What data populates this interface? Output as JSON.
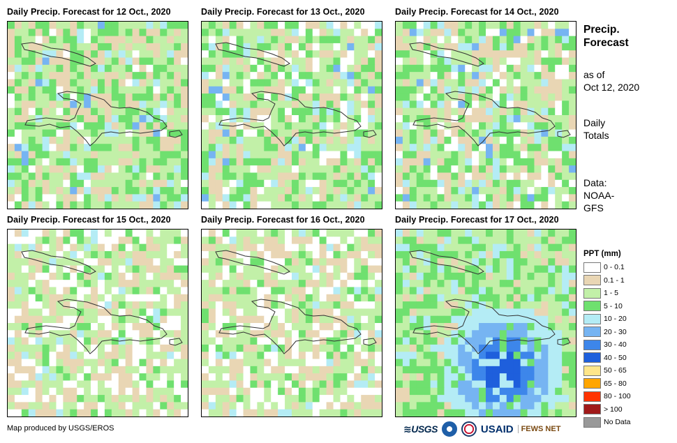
{
  "panels": [
    {
      "title": "Daily Precip. Forecast for 12 Oct., 2020",
      "seed": 12,
      "profile": "wet"
    },
    {
      "title": "Daily Precip. Forecast for 13 Oct., 2020",
      "seed": 13,
      "profile": "mixed"
    },
    {
      "title": "Daily Precip. Forecast for 14 Oct., 2020",
      "seed": 14,
      "profile": "mixed"
    },
    {
      "title": "Daily Precip. Forecast for 15 Oct., 2020",
      "seed": 15,
      "profile": "dry"
    },
    {
      "title": "Daily Precip. Forecast for 16 Oct., 2020",
      "seed": 16,
      "profile": "dry"
    },
    {
      "title": "Daily Precip. Forecast for 17 Oct., 2020",
      "seed": 17,
      "profile": "storm"
    }
  ],
  "side": {
    "title_line1": "Precip.",
    "title_line2": "Forecast",
    "asof_line1": "as of",
    "asof_line2": "Oct 12, 2020",
    "totals_line1": "Daily",
    "totals_line2": "Totals",
    "data_line1": "Data:",
    "data_line2": "NOAA-",
    "data_line3": "GFS"
  },
  "legend": {
    "title": "PPT (mm)",
    "items": [
      {
        "label": "0 - 0.1",
        "color": "#ffffff"
      },
      {
        "label": "0.1 - 1",
        "color": "#e9d6b4"
      },
      {
        "label": "1 - 5",
        "color": "#c2f0a8"
      },
      {
        "label": "5 - 10",
        "color": "#6fe06f"
      },
      {
        "label": "10 - 20",
        "color": "#b4ecf5"
      },
      {
        "label": "20 - 30",
        "color": "#76b4f2"
      },
      {
        "label": "30 - 40",
        "color": "#3d86ea"
      },
      {
        "label": "40 - 50",
        "color": "#1e5fdc"
      },
      {
        "label": "50 - 65",
        "color": "#ffe68a"
      },
      {
        "label": "65 - 80",
        "color": "#ffa500"
      },
      {
        "label": "80 - 100",
        "color": "#ff3300"
      },
      {
        "label": "> 100",
        "color": "#a01919"
      },
      {
        "label": "No Data",
        "color": "#999999"
      }
    ]
  },
  "footer": {
    "credit": "Map produced by USGS/EROS",
    "logo_usgs": "≋USGS",
    "logo_usaid": "USAID",
    "logo_fews": "FEWS NET"
  }
}
